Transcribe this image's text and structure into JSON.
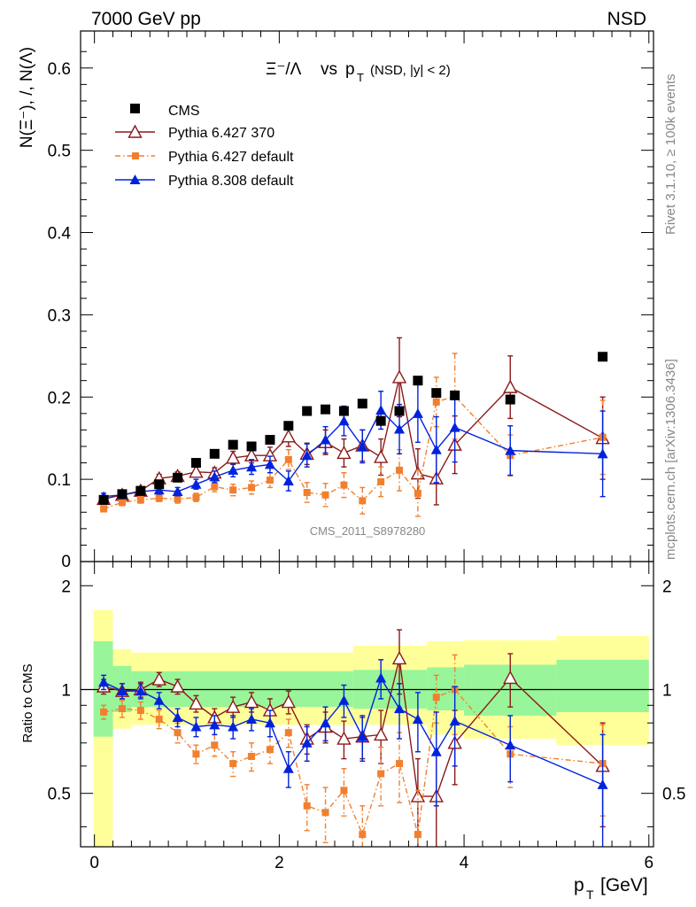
{
  "header": {
    "left": "7000 GeV pp",
    "right": "NSD"
  },
  "title": {
    "main": "Ξ⁻/Λ",
    "vs": "vs",
    "p": "p",
    "sub": "T",
    "cut": "(NSD, |y| < 2)"
  },
  "side_labels": {
    "rivet": "Rivet 3.1.10, ≥ 100k events",
    "mcplots": "mcplots.cern.ch [arXiv:1306.3436]"
  },
  "watermark": "CMS_2011_S8978280",
  "colors": {
    "cms": "#000000",
    "py370": "#8b1a1a",
    "pydef": "#f08030",
    "py8": "#0022dd",
    "band_inner": "#99f599",
    "band_outer": "#ffff99"
  },
  "chart_data": [
    {
      "type": "scatter",
      "panel": "main",
      "ylabel": "N(Ξ⁻), /, N(Λ)",
      "xlabel": "p_T [GeV]",
      "xlim": [
        -0.15,
        6.05
      ],
      "ylim": [
        0,
        0.645
      ],
      "yticks": [
        "0.1",
        "0.2",
        "0.3",
        "0.4",
        "0.5",
        "0.6"
      ],
      "zero_label": "0",
      "legend": {
        "position": "top-left",
        "entries": [
          "CMS",
          "Pythia 6.427 370",
          "Pythia 6.427 default",
          "Pythia 8.308 default"
        ]
      },
      "x_cms": [
        0.1,
        0.3,
        0.5,
        0.7,
        0.9,
        1.1,
        1.3,
        1.5,
        1.7,
        1.9,
        2.1,
        2.3,
        2.5,
        2.7,
        2.9,
        3.1,
        3.3,
        3.5,
        3.7,
        3.9,
        4.5,
        5.5
      ],
      "cms": [
        0.075,
        0.082,
        0.086,
        0.094,
        0.102,
        0.12,
        0.131,
        0.142,
        0.14,
        0.148,
        0.165,
        0.183,
        0.185,
        0.183,
        0.192,
        0.171,
        0.183,
        0.22,
        0.205,
        0.202,
        0.197,
        0.249
      ],
      "x_mc": [
        0.1,
        0.3,
        0.5,
        0.7,
        0.9,
        1.1,
        1.3,
        1.5,
        1.7,
        1.9,
        2.1,
        2.3,
        2.5,
        2.7,
        2.9,
        3.1,
        3.3,
        3.5,
        3.7,
        3.9,
        4.5,
        5.5
      ],
      "series": [
        {
          "name": "Pythia 6.427 370",
          "key": "py370",
          "values": [
            0.076,
            0.081,
            0.086,
            0.101,
            0.104,
            0.109,
            0.108,
            0.126,
            0.129,
            0.129,
            0.152,
            0.131,
            0.145,
            0.132,
            0.141,
            0.127,
            0.224,
            0.107,
            0.101,
            0.142,
            0.212,
            0.15
          ],
          "errors": [
            0.004,
            0.004,
            0.004,
            0.005,
            0.005,
            0.006,
            0.006,
            0.008,
            0.009,
            0.01,
            0.012,
            0.013,
            0.015,
            0.017,
            0.019,
            0.022,
            0.048,
            0.03,
            0.032,
            0.035,
            0.038,
            0.05
          ]
        },
        {
          "name": "Pythia 6.427 default",
          "key": "pydef",
          "values": [
            0.064,
            0.072,
            0.075,
            0.077,
            0.076,
            0.078,
            0.091,
            0.087,
            0.09,
            0.099,
            0.124,
            0.084,
            0.081,
            0.093,
            0.074,
            0.097,
            0.111,
            0.083,
            0.194,
            0.201,
            0.129,
            0.151
          ],
          "errors": [
            0.003,
            0.004,
            0.004,
            0.004,
            0.005,
            0.005,
            0.006,
            0.007,
            0.008,
            0.009,
            0.012,
            0.012,
            0.014,
            0.015,
            0.016,
            0.018,
            0.025,
            0.028,
            0.03,
            0.052,
            0.025,
            0.045
          ]
        },
        {
          "name": "Pythia 8.308 default",
          "key": "py8",
          "values": [
            0.079,
            0.081,
            0.085,
            0.087,
            0.085,
            0.094,
            0.103,
            0.111,
            0.115,
            0.118,
            0.098,
            0.129,
            0.148,
            0.171,
            0.14,
            0.184,
            0.161,
            0.18,
            0.136,
            0.163,
            0.135,
            0.131
          ],
          "errors": [
            0.004,
            0.004,
            0.004,
            0.005,
            0.005,
            0.006,
            0.007,
            0.008,
            0.009,
            0.01,
            0.012,
            0.014,
            0.016,
            0.018,
            0.02,
            0.023,
            0.03,
            0.035,
            0.04,
            0.042,
            0.03,
            0.052
          ]
        }
      ]
    },
    {
      "type": "scatter",
      "panel": "ratio",
      "ylabel": "Ratio to CMS",
      "xlabel": "p_T [GeV]",
      "xlim": [
        -0.15,
        6.05
      ],
      "ylim": [
        0.35,
        2.35
      ],
      "yticks": [
        "0.5",
        "1",
        "2"
      ],
      "xticks": [
        "0",
        "2",
        "4",
        "6"
      ],
      "bands": [
        {
          "x0": -0.01,
          "x1": 0.2,
          "inner": [
            0.73,
            1.38
          ],
          "outer": [
            0.3,
            1.7
          ]
        },
        {
          "x0": 0.2,
          "x1": 0.4,
          "inner": [
            0.86,
            1.17
          ],
          "outer": [
            0.77,
            1.31
          ]
        },
        {
          "x0": 0.4,
          "x1": 2.8,
          "inner": [
            0.89,
            1.13
          ],
          "outer": [
            0.79,
            1.28
          ]
        },
        {
          "x0": 2.8,
          "x1": 3.6,
          "inner": [
            0.88,
            1.14
          ],
          "outer": [
            0.79,
            1.34
          ]
        },
        {
          "x0": 3.6,
          "x1": 4.0,
          "inner": [
            0.87,
            1.16
          ],
          "outer": [
            0.74,
            1.38
          ]
        },
        {
          "x0": 4.0,
          "x1": 5.0,
          "inner": [
            0.84,
            1.18
          ],
          "outer": [
            0.72,
            1.39
          ]
        },
        {
          "x0": 5.0,
          "x1": 6.0,
          "inner": [
            0.86,
            1.22
          ],
          "outer": [
            0.69,
            1.43
          ]
        }
      ],
      "series": [
        {
          "name": "Pythia 6.427 370",
          "key": "py370",
          "values": [
            1.02,
            0.99,
            1.0,
            1.07,
            1.02,
            0.91,
            0.83,
            0.89,
            0.92,
            0.87,
            0.92,
            0.72,
            0.78,
            0.72,
            0.73,
            0.74,
            1.23,
            0.49,
            0.49,
            0.7,
            1.08,
            0.6
          ],
          "errors": [
            0.05,
            0.05,
            0.05,
            0.05,
            0.05,
            0.05,
            0.05,
            0.06,
            0.06,
            0.07,
            0.07,
            0.07,
            0.08,
            0.09,
            0.1,
            0.13,
            0.26,
            0.14,
            0.16,
            0.17,
            0.19,
            0.2
          ]
        },
        {
          "name": "Pythia 6.427 default",
          "key": "pydef",
          "values": [
            0.86,
            0.88,
            0.87,
            0.82,
            0.75,
            0.65,
            0.69,
            0.61,
            0.64,
            0.67,
            0.75,
            0.46,
            0.44,
            0.51,
            0.38,
            0.57,
            0.61,
            0.38,
            0.95,
            1.0,
            0.65,
            0.61
          ],
          "errors": [
            0.04,
            0.05,
            0.05,
            0.05,
            0.05,
            0.04,
            0.05,
            0.05,
            0.06,
            0.06,
            0.07,
            0.07,
            0.08,
            0.08,
            0.08,
            0.11,
            0.14,
            0.13,
            0.15,
            0.26,
            0.13,
            0.18
          ]
        },
        {
          "name": "Pythia 8.308 default",
          "key": "py8",
          "values": [
            1.05,
            0.99,
            0.99,
            0.93,
            0.83,
            0.78,
            0.79,
            0.78,
            0.82,
            0.8,
            0.59,
            0.7,
            0.8,
            0.93,
            0.73,
            1.08,
            0.88,
            0.82,
            0.66,
            0.81,
            0.69,
            0.53
          ],
          "errors": [
            0.05,
            0.05,
            0.05,
            0.05,
            0.05,
            0.05,
            0.05,
            0.06,
            0.06,
            0.07,
            0.07,
            0.08,
            0.09,
            0.1,
            0.11,
            0.14,
            0.16,
            0.16,
            0.2,
            0.21,
            0.15,
            0.21
          ]
        }
      ]
    }
  ]
}
